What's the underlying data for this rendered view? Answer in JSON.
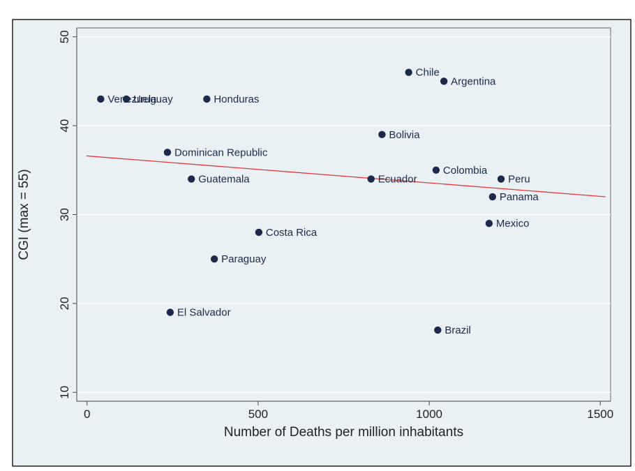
{
  "chart_data": {
    "type": "scatter",
    "xlabel": "Number of Deaths per million inhabitants",
    "ylabel": "CGI (max = 55)",
    "xlim": [
      -30,
      1530
    ],
    "ylim": [
      9,
      51
    ],
    "xticks": [
      0,
      500,
      1000,
      1500
    ],
    "yticks": [
      10,
      20,
      30,
      40,
      50
    ],
    "grid": true,
    "colors": {
      "plot_bg": "#eaf1f4",
      "outer_bg": "#eaf1f4",
      "point": "#1b2a4a",
      "fit_line": "#e8373c",
      "grid": "#ffffff"
    },
    "points": [
      {
        "label": "Venezuela",
        "x": 40,
        "y": 43
      },
      {
        "label": "Uruguay",
        "x": 115,
        "y": 43
      },
      {
        "label": "Honduras",
        "x": 350,
        "y": 43
      },
      {
        "label": "Chile",
        "x": 940,
        "y": 46
      },
      {
        "label": "Argentina",
        "x": 1043,
        "y": 45
      },
      {
        "label": "Bolivia",
        "x": 862,
        "y": 39
      },
      {
        "label": "Dominican Republic",
        "x": 235,
        "y": 37
      },
      {
        "label": "Guatemala",
        "x": 305,
        "y": 34
      },
      {
        "label": "Ecuador",
        "x": 830,
        "y": 34
      },
      {
        "label": "Colombia",
        "x": 1020,
        "y": 35
      },
      {
        "label": "Peru",
        "x": 1210,
        "y": 34
      },
      {
        "label": "Panama",
        "x": 1185,
        "y": 32
      },
      {
        "label": "Mexico",
        "x": 1175,
        "y": 29
      },
      {
        "label": "Costa Rica",
        "x": 502,
        "y": 28
      },
      {
        "label": "Paraguay",
        "x": 372,
        "y": 25
      },
      {
        "label": "El Salvador",
        "x": 243,
        "y": 19
      },
      {
        "label": "Brazil",
        "x": 1025,
        "y": 17
      }
    ],
    "fit_line": {
      "x": [
        -2,
        1515
      ],
      "y": [
        36.6,
        32.0
      ]
    }
  }
}
